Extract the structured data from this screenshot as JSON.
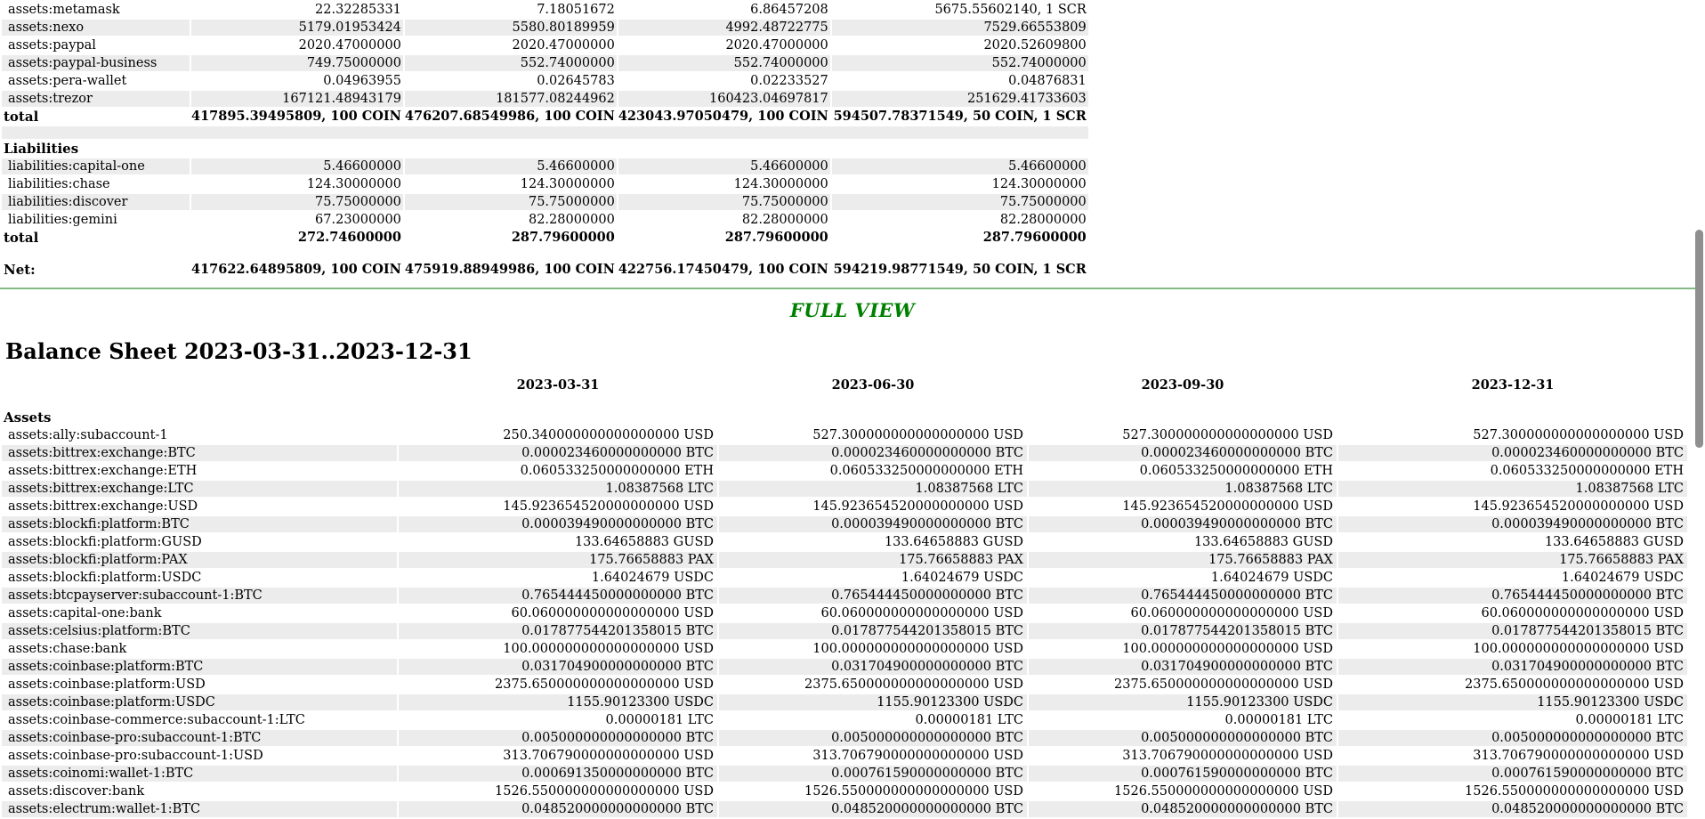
{
  "page": {
    "full_view_label": "FULL VIEW"
  },
  "colors": {
    "heading_green": "#008000",
    "divider_green": "#84bb84",
    "row_shade": "#ececec",
    "scrollbar_thumb": "#8f8f8f"
  },
  "report1": {
    "assets_rows": [
      {
        "name": "assets:metamask",
        "values": [
          "22.32285331",
          "7.18051672",
          "6.86457208",
          "5675.55602140, 1 SCR"
        ]
      },
      {
        "name": "assets:nexo",
        "values": [
          "5179.01953424",
          "5580.80189959",
          "4992.48722775",
          "7529.66553809"
        ]
      },
      {
        "name": "assets:paypal",
        "values": [
          "2020.47000000",
          "2020.47000000",
          "2020.47000000",
          "2020.52609800"
        ]
      },
      {
        "name": "assets:paypal-business",
        "values": [
          "749.75000000",
          "552.74000000",
          "552.74000000",
          "552.74000000"
        ]
      },
      {
        "name": "assets:pera-wallet",
        "values": [
          "0.04963955",
          "0.02645783",
          "0.02233527",
          "0.04876831"
        ]
      },
      {
        "name": "assets:trezor",
        "values": [
          "167121.48943179",
          "181577.08244962",
          "160423.04697817",
          "251629.41733603"
        ]
      }
    ],
    "assets_total": {
      "label": "total",
      "values": [
        "417895.39495809, 100 COIN",
        "476207.68549986, 100 COIN",
        "423043.97050479, 100 COIN",
        "594507.78371549, 50 COIN, 1 SCR"
      ]
    },
    "liabilities_label": "Liabilities",
    "liabilities_rows": [
      {
        "name": "liabilities:capital-one",
        "values": [
          "5.46600000",
          "5.46600000",
          "5.46600000",
          "5.46600000"
        ]
      },
      {
        "name": "liabilities:chase",
        "values": [
          "124.30000000",
          "124.30000000",
          "124.30000000",
          "124.30000000"
        ]
      },
      {
        "name": "liabilities:discover",
        "values": [
          "75.75000000",
          "75.75000000",
          "75.75000000",
          "75.75000000"
        ]
      },
      {
        "name": "liabilities:gemini",
        "values": [
          "67.23000000",
          "82.28000000",
          "82.28000000",
          "82.28000000"
        ]
      }
    ],
    "liabilities_total": {
      "label": "total",
      "values": [
        "272.74600000",
        "287.79600000",
        "287.79600000",
        "287.79600000"
      ]
    },
    "net": {
      "label": "Net:",
      "values": [
        "417622.64895809, 100 COIN",
        "475919.88949986, 100 COIN",
        "422756.17450479, 100 COIN",
        "594219.98771549, 50 COIN, 1 SCR"
      ]
    }
  },
  "report2": {
    "title": "Balance Sheet 2023-03-31..2023-12-31",
    "headers": [
      "2023-03-31",
      "2023-06-30",
      "2023-09-30",
      "2023-12-31"
    ],
    "section_label": "Assets",
    "rows": [
      {
        "name": "assets:ally:subaccount-1",
        "values": [
          "250.340000000000000000 USD",
          "527.300000000000000000 USD",
          "527.300000000000000000 USD",
          "527.300000000000000000 USD"
        ]
      },
      {
        "name": "assets:bittrex:exchange:BTC",
        "values": [
          "0.000023460000000000 BTC",
          "0.000023460000000000 BTC",
          "0.000023460000000000 BTC",
          "0.000023460000000000 BTC"
        ]
      },
      {
        "name": "assets:bittrex:exchange:ETH",
        "values": [
          "0.060533250000000000 ETH",
          "0.060533250000000000 ETH",
          "0.060533250000000000 ETH",
          "0.060533250000000000 ETH"
        ]
      },
      {
        "name": "assets:bittrex:exchange:LTC",
        "values": [
          "1.08387568 LTC",
          "1.08387568 LTC",
          "1.08387568 LTC",
          "1.08387568 LTC"
        ]
      },
      {
        "name": "assets:bittrex:exchange:USD",
        "values": [
          "145.923654520000000000 USD",
          "145.923654520000000000 USD",
          "145.923654520000000000 USD",
          "145.923654520000000000 USD"
        ]
      },
      {
        "name": "assets:blockfi:platform:BTC",
        "values": [
          "0.000039490000000000 BTC",
          "0.000039490000000000 BTC",
          "0.000039490000000000 BTC",
          "0.000039490000000000 BTC"
        ]
      },
      {
        "name": "assets:blockfi:platform:GUSD",
        "values": [
          "133.64658883 GUSD",
          "133.64658883 GUSD",
          "133.64658883 GUSD",
          "133.64658883 GUSD"
        ]
      },
      {
        "name": "assets:blockfi:platform:PAX",
        "values": [
          "175.76658883 PAX",
          "175.76658883 PAX",
          "175.76658883 PAX",
          "175.76658883 PAX"
        ]
      },
      {
        "name": "assets:blockfi:platform:USDC",
        "values": [
          "1.64024679 USDC",
          "1.64024679 USDC",
          "1.64024679 USDC",
          "1.64024679 USDC"
        ]
      },
      {
        "name": "assets:btcpayserver:subaccount-1:BTC",
        "values": [
          "0.765444450000000000 BTC",
          "0.765444450000000000 BTC",
          "0.765444450000000000 BTC",
          "0.765444450000000000 BTC"
        ]
      },
      {
        "name": "assets:capital-one:bank",
        "values": [
          "60.060000000000000000 USD",
          "60.060000000000000000 USD",
          "60.060000000000000000 USD",
          "60.060000000000000000 USD"
        ]
      },
      {
        "name": "assets:celsius:platform:BTC",
        "values": [
          "0.017877544201358015 BTC",
          "0.017877544201358015 BTC",
          "0.017877544201358015 BTC",
          "0.017877544201358015 BTC"
        ]
      },
      {
        "name": "assets:chase:bank",
        "values": [
          "100.000000000000000000 USD",
          "100.000000000000000000 USD",
          "100.000000000000000000 USD",
          "100.000000000000000000 USD"
        ]
      },
      {
        "name": "assets:coinbase:platform:BTC",
        "values": [
          "0.031704900000000000 BTC",
          "0.031704900000000000 BTC",
          "0.031704900000000000 BTC",
          "0.031704900000000000 BTC"
        ]
      },
      {
        "name": "assets:coinbase:platform:USD",
        "values": [
          "2375.650000000000000000 USD",
          "2375.650000000000000000 USD",
          "2375.650000000000000000 USD",
          "2375.650000000000000000 USD"
        ]
      },
      {
        "name": "assets:coinbase:platform:USDC",
        "values": [
          "1155.90123300 USDC",
          "1155.90123300 USDC",
          "1155.90123300 USDC",
          "1155.90123300 USDC"
        ]
      },
      {
        "name": "assets:coinbase-commerce:subaccount-1:LTC",
        "values": [
          "0.00000181 LTC",
          "0.00000181 LTC",
          "0.00000181 LTC",
          "0.00000181 LTC"
        ]
      },
      {
        "name": "assets:coinbase-pro:subaccount-1:BTC",
        "values": [
          "0.005000000000000000 BTC",
          "0.005000000000000000 BTC",
          "0.005000000000000000 BTC",
          "0.005000000000000000 BTC"
        ]
      },
      {
        "name": "assets:coinbase-pro:subaccount-1:USD",
        "values": [
          "313.706790000000000000 USD",
          "313.706790000000000000 USD",
          "313.706790000000000000 USD",
          "313.706790000000000000 USD"
        ]
      },
      {
        "name": "assets:coinomi:wallet-1:BTC",
        "values": [
          "0.000691350000000000 BTC",
          "0.000761590000000000 BTC",
          "0.000761590000000000 BTC",
          "0.000761590000000000 BTC"
        ]
      },
      {
        "name": "assets:discover:bank",
        "values": [
          "1526.550000000000000000 USD",
          "1526.550000000000000000 USD",
          "1526.550000000000000000 USD",
          "1526.550000000000000000 USD"
        ]
      },
      {
        "name": "assets:electrum:wallet-1:BTC",
        "values": [
          "0.048520000000000000 BTC",
          "0.048520000000000000 BTC",
          "0.048520000000000000 BTC",
          "0.048520000000000000 BTC"
        ]
      }
    ]
  }
}
